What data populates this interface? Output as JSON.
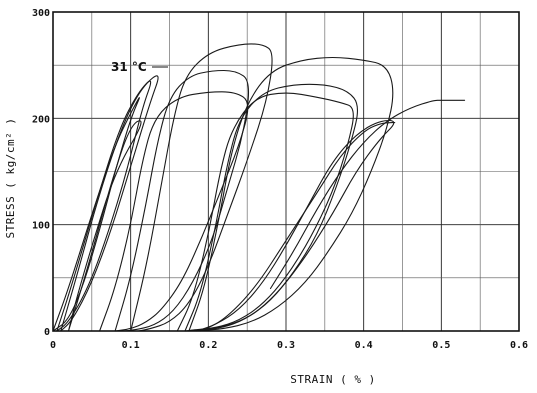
{
  "chart_data": {
    "type": "line",
    "xlabel": "STRAIN ( % )",
    "ylabel": "STRESS ( kg/cm² )",
    "xlim": [
      0,
      0.6
    ],
    "ylim": [
      0,
      300
    ],
    "x_ticks": [
      "0",
      "0.1",
      "0.2",
      "0.3",
      "0.4",
      "0.5",
      "0.6"
    ],
    "y_ticks": [
      "0",
      "100",
      "200",
      "300"
    ],
    "x_tick_values": [
      0,
      0.1,
      0.2,
      0.3,
      0.4,
      0.5,
      0.6
    ],
    "y_tick_values": [
      0,
      100,
      200,
      300
    ],
    "grid": true,
    "x_minor_grid": [
      0.05,
      0.15,
      0.25,
      0.35,
      0.45,
      0.55
    ],
    "y_minor_grid": [
      50,
      150,
      250
    ],
    "annotation": "31 °C",
    "line_color": "#1a1a1a",
    "series": [
      {
        "x": [
          0.0,
          0.02,
          0.05,
          0.08,
          0.1,
          0.115,
          0.1,
          0.08,
          0.06,
          0.04,
          0.02,
          0.0
        ],
        "y": [
          0,
          40,
          110,
          175,
          205,
          225,
          200,
          150,
          95,
          45,
          10,
          0
        ]
      },
      {
        "x": [
          0.005,
          0.025,
          0.055,
          0.085,
          0.11,
          0.13,
          0.115,
          0.095,
          0.07,
          0.045,
          0.02,
          0.005
        ],
        "y": [
          0,
          45,
          120,
          190,
          225,
          240,
          210,
          150,
          90,
          40,
          8,
          0
        ]
      },
      {
        "x": [
          0.01,
          0.03,
          0.06,
          0.09,
          0.115,
          0.14,
          0.125,
          0.1,
          0.075,
          0.05,
          0.025,
          0.01
        ],
        "y": [
          0,
          50,
          130,
          195,
          230,
          245,
          215,
          155,
          95,
          45,
          10,
          0
        ]
      },
      {
        "x": [
          0.02,
          0.045,
          0.075,
          0.1,
          0.12,
          0.08,
          0.05,
          0.03,
          0.02
        ],
        "y": [
          0,
          60,
          140,
          195,
          200,
          150,
          80,
          30,
          0
        ]
      },
      {
        "x": [
          0.06,
          0.08,
          0.1,
          0.115,
          0.13,
          0.16,
          0.2,
          0.235,
          0.255,
          0.24,
          0.215,
          0.19,
          0.165,
          0.14,
          0.12,
          0.1,
          0.08
        ],
        "y": [
          0,
          40,
          100,
          160,
          200,
          220,
          225,
          225,
          215,
          175,
          130,
          85,
          45,
          20,
          8,
          2,
          0
        ]
      },
      {
        "x": [
          0.08,
          0.1,
          0.12,
          0.135,
          0.15,
          0.175,
          0.205,
          0.235,
          0.255,
          0.245,
          0.225,
          0.205,
          0.18,
          0.155,
          0.13,
          0.105,
          0.09
        ],
        "y": [
          0,
          50,
          120,
          180,
          220,
          240,
          245,
          245,
          235,
          185,
          135,
          85,
          45,
          18,
          5,
          1,
          0
        ]
      },
      {
        "x": [
          0.1,
          0.12,
          0.14,
          0.155,
          0.17,
          0.2,
          0.24,
          0.27,
          0.285,
          0.275,
          0.25,
          0.225,
          0.2,
          0.175,
          0.15,
          0.125,
          0.11
        ],
        "y": [
          0,
          60,
          140,
          200,
          240,
          262,
          270,
          270,
          262,
          215,
          160,
          110,
          60,
          25,
          8,
          2,
          0
        ]
      },
      {
        "x": [
          0.16,
          0.18,
          0.2,
          0.215,
          0.23,
          0.26,
          0.3,
          0.34,
          0.37,
          0.39,
          0.38,
          0.36,
          0.33,
          0.3,
          0.27,
          0.24,
          0.21,
          0.18,
          0.17
        ],
        "y": [
          0,
          30,
          90,
          150,
          190,
          220,
          225,
          220,
          215,
          210,
          175,
          130,
          85,
          50,
          25,
          10,
          3,
          1,
          0
        ]
      },
      {
        "x": [
          0.17,
          0.19,
          0.21,
          0.225,
          0.24,
          0.27,
          0.31,
          0.35,
          0.38,
          0.395,
          0.385,
          0.365,
          0.34,
          0.31,
          0.28,
          0.25,
          0.22,
          0.19,
          0.175
        ],
        "y": [
          0,
          35,
          100,
          160,
          200,
          225,
          232,
          232,
          226,
          212,
          180,
          135,
          90,
          55,
          28,
          12,
          4,
          1,
          0
        ]
      },
      {
        "x": [
          0.175,
          0.195,
          0.215,
          0.23,
          0.25,
          0.28,
          0.32,
          0.36,
          0.4,
          0.43,
          0.44,
          0.43,
          0.41,
          0.385,
          0.355,
          0.325,
          0.29,
          0.255,
          0.22,
          0.19,
          0.175
        ],
        "y": [
          0,
          40,
          110,
          170,
          215,
          245,
          255,
          258,
          255,
          250,
          225,
          190,
          150,
          110,
          75,
          45,
          22,
          8,
          2,
          0.5,
          0
        ]
      },
      {
        "x": [
          0.185,
          0.21,
          0.24,
          0.27,
          0.3,
          0.33,
          0.36,
          0.39,
          0.42,
          0.445,
          0.42,
          0.39,
          0.36,
          0.33,
          0.3,
          0.27,
          0.24,
          0.21,
          0.185
        ],
        "y": [
          0,
          6,
          20,
          45,
          80,
          120,
          160,
          185,
          198,
          198,
          180,
          150,
          110,
          75,
          45,
          22,
          8,
          2,
          0
        ]
      },
      {
        "x": [
          0.19,
          0.22,
          0.26,
          0.3,
          0.34,
          0.37,
          0.4,
          0.42,
          0.435,
          0.44
        ],
        "y": [
          0,
          10,
          40,
          85,
          130,
          165,
          188,
          195,
          196,
          196
        ]
      },
      {
        "x": [
          0.28,
          0.31,
          0.34,
          0.37,
          0.4,
          0.43,
          0.46,
          0.49,
          0.5,
          0.53
        ],
        "y": [
          40,
          75,
          115,
          150,
          178,
          198,
          210,
          217,
          217,
          217
        ]
      }
    ]
  }
}
